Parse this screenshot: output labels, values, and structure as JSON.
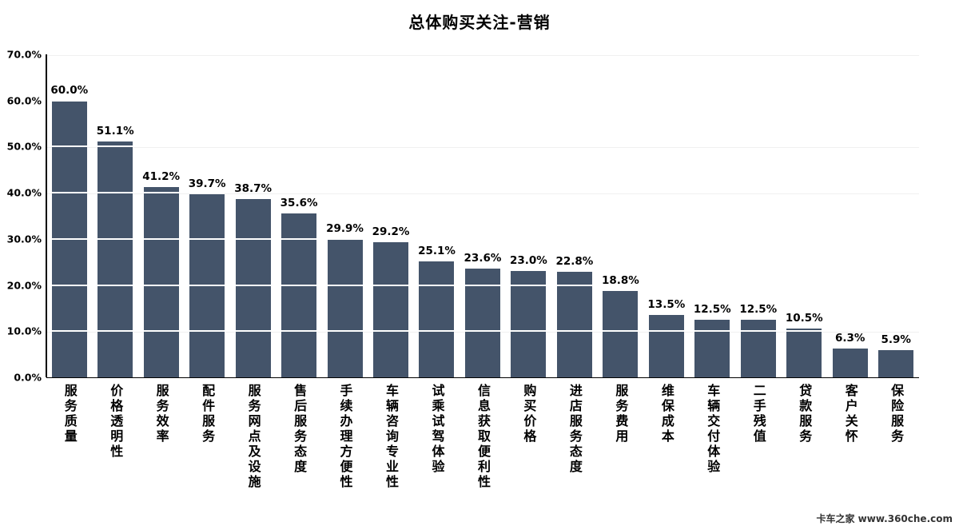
{
  "chart_data": {
    "type": "bar",
    "title": "总体购买关注-营销",
    "categories": [
      "服务质量",
      "价格透明性",
      "服务效率",
      "配件服务",
      "服务网点及设施",
      "售后服务态度",
      "手续办理方便性",
      "车辆咨询专业性",
      "试乘试驾体验",
      "信息获取便利性",
      "购买价格",
      "进店服务态度",
      "服务费用",
      "维保成本",
      "车辆交付体验",
      "二手残值",
      "贷款服务",
      "客户关怀",
      "保险服务"
    ],
    "values": [
      60.0,
      51.1,
      41.2,
      39.7,
      38.7,
      35.6,
      29.9,
      29.2,
      25.1,
      23.6,
      23.0,
      22.8,
      18.8,
      13.5,
      12.5,
      12.5,
      10.5,
      6.3,
      5.9
    ],
    "data_labels": [
      "60.0%",
      "51.1%",
      "41.2%",
      "39.7%",
      "38.7%",
      "35.6%",
      "29.9%",
      "29.2%",
      "25.1%",
      "23.6%",
      "23.0%",
      "22.8%",
      "18.8%",
      "13.5%",
      "12.5%",
      "12.5%",
      "10.5%",
      "6.3%",
      "5.9%"
    ],
    "ylim": [
      0,
      70
    ],
    "yticks": [
      "0.0%",
      "10.0%",
      "20.0%",
      "30.0%",
      "40.0%",
      "50.0%",
      "60.0%",
      "70.0%"
    ],
    "grid": true,
    "legend": "none",
    "bar_color": "#44546A",
    "gridline_color": "#c6c6c6",
    "axis_color": "#000000"
  },
  "watermark": {
    "text": "卡车之家 www.360che.com"
  }
}
